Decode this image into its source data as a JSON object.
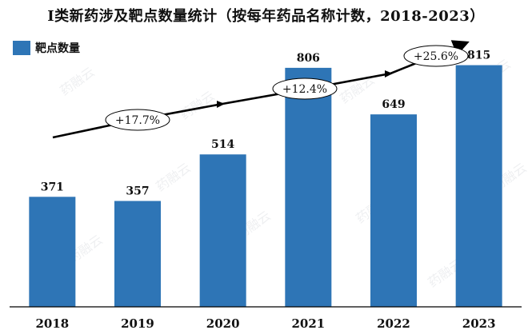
{
  "chart_data": {
    "type": "bar",
    "title": "I类新药涉及靶点数量统计（按每年药品名称计数，2018-2023）",
    "categories": [
      "2018",
      "2019",
      "2020",
      "2021",
      "2022",
      "2023"
    ],
    "series": [
      {
        "name": "靶点数量",
        "values": [
          371,
          357,
          514,
          806,
          649,
          815
        ]
      }
    ],
    "ylim": [
      0,
      900
    ],
    "grid": false,
    "legend_position": "top-left",
    "annotations": [
      {
        "text": "+17.7%"
      },
      {
        "text": "+12.4%"
      },
      {
        "text": "+25.6%"
      }
    ],
    "watermark": "药融云",
    "colors": {
      "bar": "#2E75B6",
      "arrow": "#000000",
      "label": "#111111"
    }
  }
}
